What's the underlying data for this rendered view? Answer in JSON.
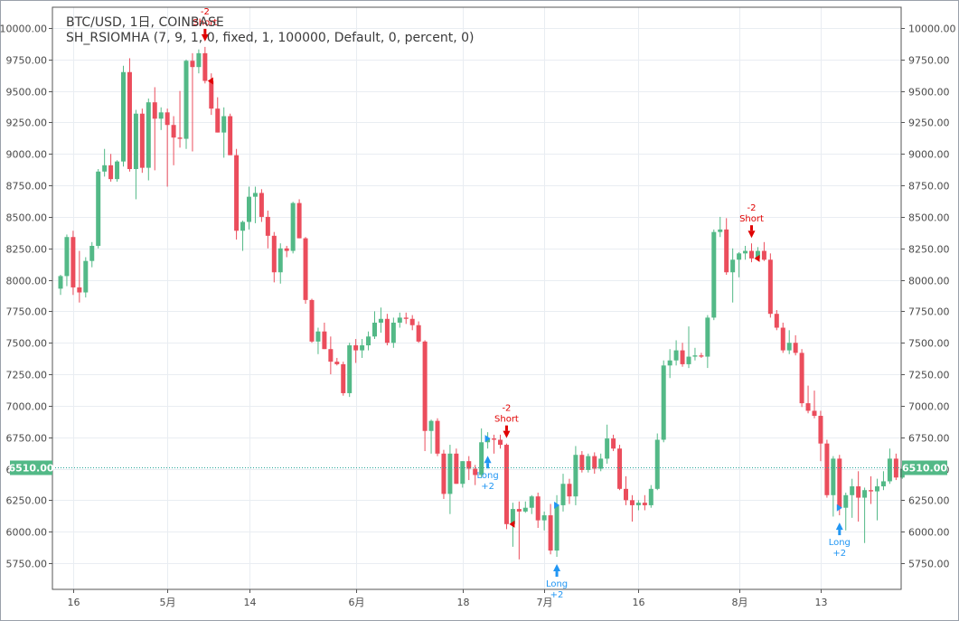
{
  "header": {
    "symbol_line": "BTC/USD, 1日, COINBASE",
    "study_line": "SH_RSIOMHA (7, 9, 1, 0, fixed, 1, 100000, Default, 0, percent, 0)"
  },
  "colors": {
    "up": "#53b987",
    "down": "#eb4d5c",
    "grid": "#e9edf2",
    "axis_text": "#4a4a4a",
    "last_price_line": "#26a69a",
    "long_signal": "#2196f3",
    "short_signal": "#e00000"
  },
  "chart_data": {
    "type": "candlestick",
    "interval": "1日",
    "exchange": "COINBASE",
    "ylim": [
      5600,
      10150
    ],
    "y_ticks": [
      5750,
      6000,
      6250,
      6500,
      6750,
      7000,
      7250,
      7500,
      7750,
      8000,
      8250,
      8500,
      8750,
      9000,
      9250,
      9500,
      9750,
      10000
    ],
    "y_tick_labels": [
      "5750.00",
      "6000.00",
      "6250.00",
      "6500.00",
      "6750.00",
      "7000.00",
      "7250.00",
      "7500.00",
      "7750.00",
      "8000.00",
      "8250.00",
      "8500.00",
      "8750.00",
      "9000.00",
      "9250.00",
      "9500.00",
      "9750.00",
      "10000.00"
    ],
    "last_price": 6510,
    "last_price_label": "6510.00",
    "x_labels": [
      {
        "index": 2,
        "label": "16"
      },
      {
        "index": 17,
        "label": "5月"
      },
      {
        "index": 30,
        "label": "14"
      },
      {
        "index": 47,
        "label": "6月"
      },
      {
        "index": 64,
        "label": "18"
      },
      {
        "index": 77,
        "label": "7月"
      },
      {
        "index": 92,
        "label": "16"
      },
      {
        "index": 108,
        "label": "8月"
      },
      {
        "index": 121,
        "label": "13"
      }
    ],
    "candles": [
      [
        7930,
        8040,
        7880,
        8030
      ],
      [
        8030,
        8360,
        7950,
        8340
      ],
      [
        8340,
        8390,
        7880,
        7940
      ],
      [
        7940,
        8230,
        7820,
        7900
      ],
      [
        7900,
        8180,
        7860,
        8150
      ],
      [
        8150,
        8300,
        8100,
        8270
      ],
      [
        8270,
        8880,
        8250,
        8860
      ],
      [
        8860,
        9040,
        8820,
        8910
      ],
      [
        8910,
        9000,
        8780,
        8800
      ],
      [
        8800,
        8950,
        8780,
        8940
      ],
      [
        8940,
        9700,
        8900,
        9650
      ],
      [
        9650,
        9760,
        8860,
        8880
      ],
      [
        8880,
        9350,
        8640,
        9320
      ],
      [
        9320,
        9360,
        8850,
        8890
      ],
      [
        8890,
        9440,
        8790,
        9410
      ],
      [
        9410,
        9530,
        8870,
        9280
      ],
      [
        9280,
        9370,
        9190,
        9330
      ],
      [
        9330,
        9360,
        8740,
        9230
      ],
      [
        9230,
        9300,
        8910,
        9130
      ],
      [
        9130,
        9500,
        9050,
        9120
      ],
      [
        9120,
        9750,
        9040,
        9740
      ],
      [
        9740,
        9800,
        9020,
        9690
      ],
      [
        9690,
        9830,
        9640,
        9800
      ],
      [
        9800,
        9850,
        9560,
        9580
      ],
      [
        9580,
        9640,
        9310,
        9360
      ],
      [
        9360,
        9450,
        9170,
        9170
      ],
      [
        9170,
        9370,
        8970,
        9300
      ],
      [
        9300,
        9320,
        8990,
        8990
      ],
      [
        8990,
        9040,
        8320,
        8390
      ],
      [
        8390,
        8470,
        8230,
        8460
      ],
      [
        8460,
        8740,
        8400,
        8660
      ],
      [
        8660,
        8740,
        8450,
        8690
      ],
      [
        8690,
        8720,
        8460,
        8500
      ],
      [
        8500,
        8550,
        8250,
        8350
      ],
      [
        8350,
        8380,
        7980,
        8060
      ],
      [
        8060,
        8290,
        7970,
        8250
      ],
      [
        8250,
        8270,
        8180,
        8230
      ],
      [
        8230,
        8620,
        8210,
        8610
      ],
      [
        8610,
        8640,
        8330,
        8330
      ],
      [
        8330,
        8340,
        7810,
        7840
      ],
      [
        7840,
        7850,
        7500,
        7510
      ],
      [
        7510,
        7620,
        7410,
        7590
      ],
      [
        7590,
        7660,
        7450,
        7450
      ],
      [
        7450,
        7550,
        7250,
        7350
      ],
      [
        7350,
        7380,
        7320,
        7330
      ],
      [
        7330,
        7350,
        7080,
        7100
      ],
      [
        7100,
        7500,
        7070,
        7480
      ],
      [
        7480,
        7530,
        7340,
        7440
      ],
      [
        7440,
        7530,
        7380,
        7480
      ],
      [
        7480,
        7590,
        7440,
        7550
      ],
      [
        7550,
        7750,
        7530,
        7660
      ],
      [
        7660,
        7780,
        7580,
        7690
      ],
      [
        7690,
        7730,
        7480,
        7500
      ],
      [
        7500,
        7700,
        7460,
        7660
      ],
      [
        7660,
        7740,
        7620,
        7700
      ],
      [
        7700,
        7740,
        7650,
        7690
      ],
      [
        7690,
        7720,
        7600,
        7640
      ],
      [
        7640,
        7670,
        7500,
        7510
      ],
      [
        7510,
        7520,
        6640,
        6800
      ],
      [
        6800,
        6890,
        6620,
        6880
      ],
      [
        6880,
        6900,
        6600,
        6620
      ],
      [
        6620,
        6650,
        6260,
        6300
      ],
      [
        6300,
        6690,
        6140,
        6620
      ],
      [
        6620,
        6660,
        6380,
        6380
      ],
      [
        6380,
        6560,
        6350,
        6560
      ],
      [
        6560,
        6600,
        6410,
        6500
      ],
      [
        6500,
        6530,
        6370,
        6450
      ],
      [
        6450,
        6820,
        6430,
        6710
      ],
      [
        6710,
        6790,
        6660,
        6740
      ],
      [
        6740,
        6770,
        6620,
        6730
      ],
      [
        6730,
        6770,
        6660,
        6690
      ],
      [
        6690,
        6700,
        6020,
        6060
      ],
      [
        6060,
        6230,
        5880,
        6180
      ],
      [
        6180,
        6240,
        5780,
        6160
      ],
      [
        6160,
        6240,
        6150,
        6190
      ],
      [
        6190,
        6290,
        6140,
        6280
      ],
      [
        6280,
        6310,
        6030,
        6090
      ],
      [
        6090,
        6160,
        6010,
        6130
      ],
      [
        6130,
        6220,
        5820,
        5850
      ],
      [
        5850,
        6290,
        5800,
        6210
      ],
      [
        6210,
        6460,
        6160,
        6380
      ],
      [
        6380,
        6420,
        6220,
        6280
      ],
      [
        6280,
        6680,
        6210,
        6610
      ],
      [
        6610,
        6640,
        6470,
        6490
      ],
      [
        6490,
        6620,
        6470,
        6600
      ],
      [
        6600,
        6630,
        6460,
        6500
      ],
      [
        6500,
        6620,
        6480,
        6580
      ],
      [
        6580,
        6850,
        6540,
        6740
      ],
      [
        6740,
        6770,
        6640,
        6660
      ],
      [
        6660,
        6690,
        6330,
        6340
      ],
      [
        6340,
        6440,
        6210,
        6250
      ],
      [
        6250,
        6290,
        6080,
        6210
      ],
      [
        6210,
        6250,
        6170,
        6230
      ],
      [
        6230,
        6290,
        6170,
        6210
      ],
      [
        6210,
        6370,
        6190,
        6340
      ],
      [
        6340,
        6780,
        6330,
        6730
      ],
      [
        6730,
        7360,
        6710,
        7320
      ],
      [
        7320,
        7450,
        7220,
        7360
      ],
      [
        7360,
        7520,
        7320,
        7440
      ],
      [
        7440,
        7500,
        7310,
        7330
      ],
      [
        7330,
        7630,
        7300,
        7390
      ],
      [
        7390,
        7460,
        7360,
        7400
      ],
      [
        7400,
        7420,
        7380,
        7390
      ],
      [
        7390,
        7720,
        7300,
        7700
      ],
      [
        7700,
        8400,
        7680,
        8380
      ],
      [
        8380,
        8500,
        8340,
        8400
      ],
      [
        8400,
        8490,
        8040,
        8060
      ],
      [
        8060,
        8250,
        7820,
        8160
      ],
      [
        8160,
        8220,
        8020,
        8210
      ],
      [
        8210,
        8270,
        8160,
        8230
      ],
      [
        8230,
        8290,
        8140,
        8170
      ],
      [
        8170,
        8260,
        8160,
        8230
      ],
      [
        8230,
        8300,
        8150,
        8160
      ],
      [
        8160,
        8210,
        7700,
        7730
      ],
      [
        7730,
        7760,
        7600,
        7620
      ],
      [
        7620,
        7660,
        7420,
        7440
      ],
      [
        7440,
        7600,
        7410,
        7500
      ],
      [
        7500,
        7560,
        7400,
        7420
      ],
      [
        7420,
        7450,
        6990,
        7020
      ],
      [
        7020,
        7160,
        6940,
        6960
      ],
      [
        6960,
        7120,
        6900,
        6920
      ],
      [
        6920,
        6960,
        6560,
        6700
      ],
      [
        6700,
        6730,
        6270,
        6290
      ],
      [
        6290,
        6600,
        6120,
        6580
      ],
      [
        6580,
        6610,
        6130,
        6190
      ],
      [
        6190,
        6310,
        6010,
        6290
      ],
      [
        6290,
        6420,
        6110,
        6360
      ],
      [
        6360,
        6480,
        6080,
        6270
      ],
      [
        6270,
        6350,
        5910,
        6330
      ],
      [
        6330,
        6440,
        6220,
        6320
      ],
      [
        6320,
        6420,
        6090,
        6360
      ],
      [
        6360,
        6480,
        6330,
        6400
      ],
      [
        6400,
        6660,
        6380,
        6580
      ],
      [
        6580,
        6620,
        6410,
        6430
      ],
      [
        6430,
        6520,
        6420,
        6500
      ],
      [
        6500,
        6540,
        6490,
        6510
      ]
    ],
    "signals": [
      {
        "index": 23,
        "type": "short",
        "label": "Short",
        "value": "-2"
      },
      {
        "index": 68,
        "type": "long",
        "label": "Long",
        "value": "+2"
      },
      {
        "index": 71,
        "type": "short",
        "label": "Short",
        "value": "-2"
      },
      {
        "index": 79,
        "type": "long",
        "label": "Long",
        "value": "+2"
      },
      {
        "index": 110,
        "type": "short",
        "label": "Short",
        "value": "-2"
      },
      {
        "index": 124,
        "type": "long",
        "label": "Long",
        "value": "+2"
      }
    ]
  }
}
